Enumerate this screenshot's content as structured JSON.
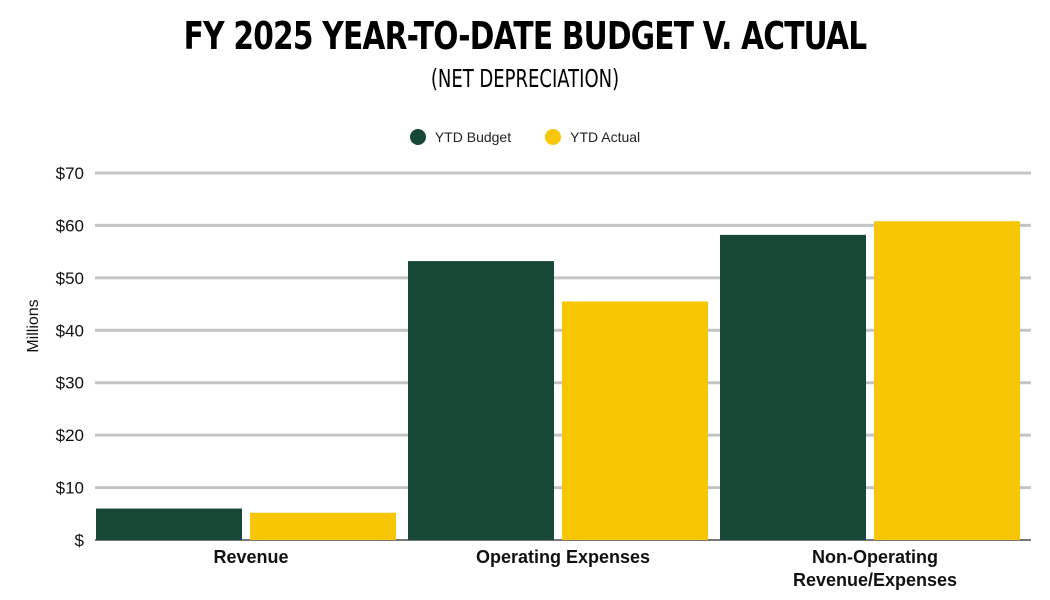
{
  "chart_data": {
    "type": "bar",
    "title": "FY 2025 YEAR-TO-DATE BUDGET V. ACTUAL",
    "subtitle": "(NET DEPRECIATION)",
    "ylabel": "Millions",
    "xlabel": "",
    "ylim": [
      0,
      70
    ],
    "yticks": [
      0,
      10,
      20,
      30,
      40,
      50,
      60,
      70
    ],
    "ytick_labels": [
      "$",
      "$10",
      "$20",
      "$30",
      "$40",
      "$50",
      "$60",
      "$70"
    ],
    "grid": true,
    "legend_position": "top-center",
    "categories": [
      "Revenue",
      "Operating Expenses",
      "Non-Operating Revenue/Expenses"
    ],
    "category_lines": [
      [
        "Revenue"
      ],
      [
        "Operating Expenses"
      ],
      [
        "Non-Operating",
        "Revenue/Expenses"
      ]
    ],
    "series": [
      {
        "name": "YTD Budget",
        "color": "#174836",
        "values": [
          6.0,
          53.2,
          58.2
        ]
      },
      {
        "name": "YTD Actual",
        "color": "#F7C605",
        "values": [
          5.2,
          45.5,
          60.8
        ]
      }
    ]
  }
}
